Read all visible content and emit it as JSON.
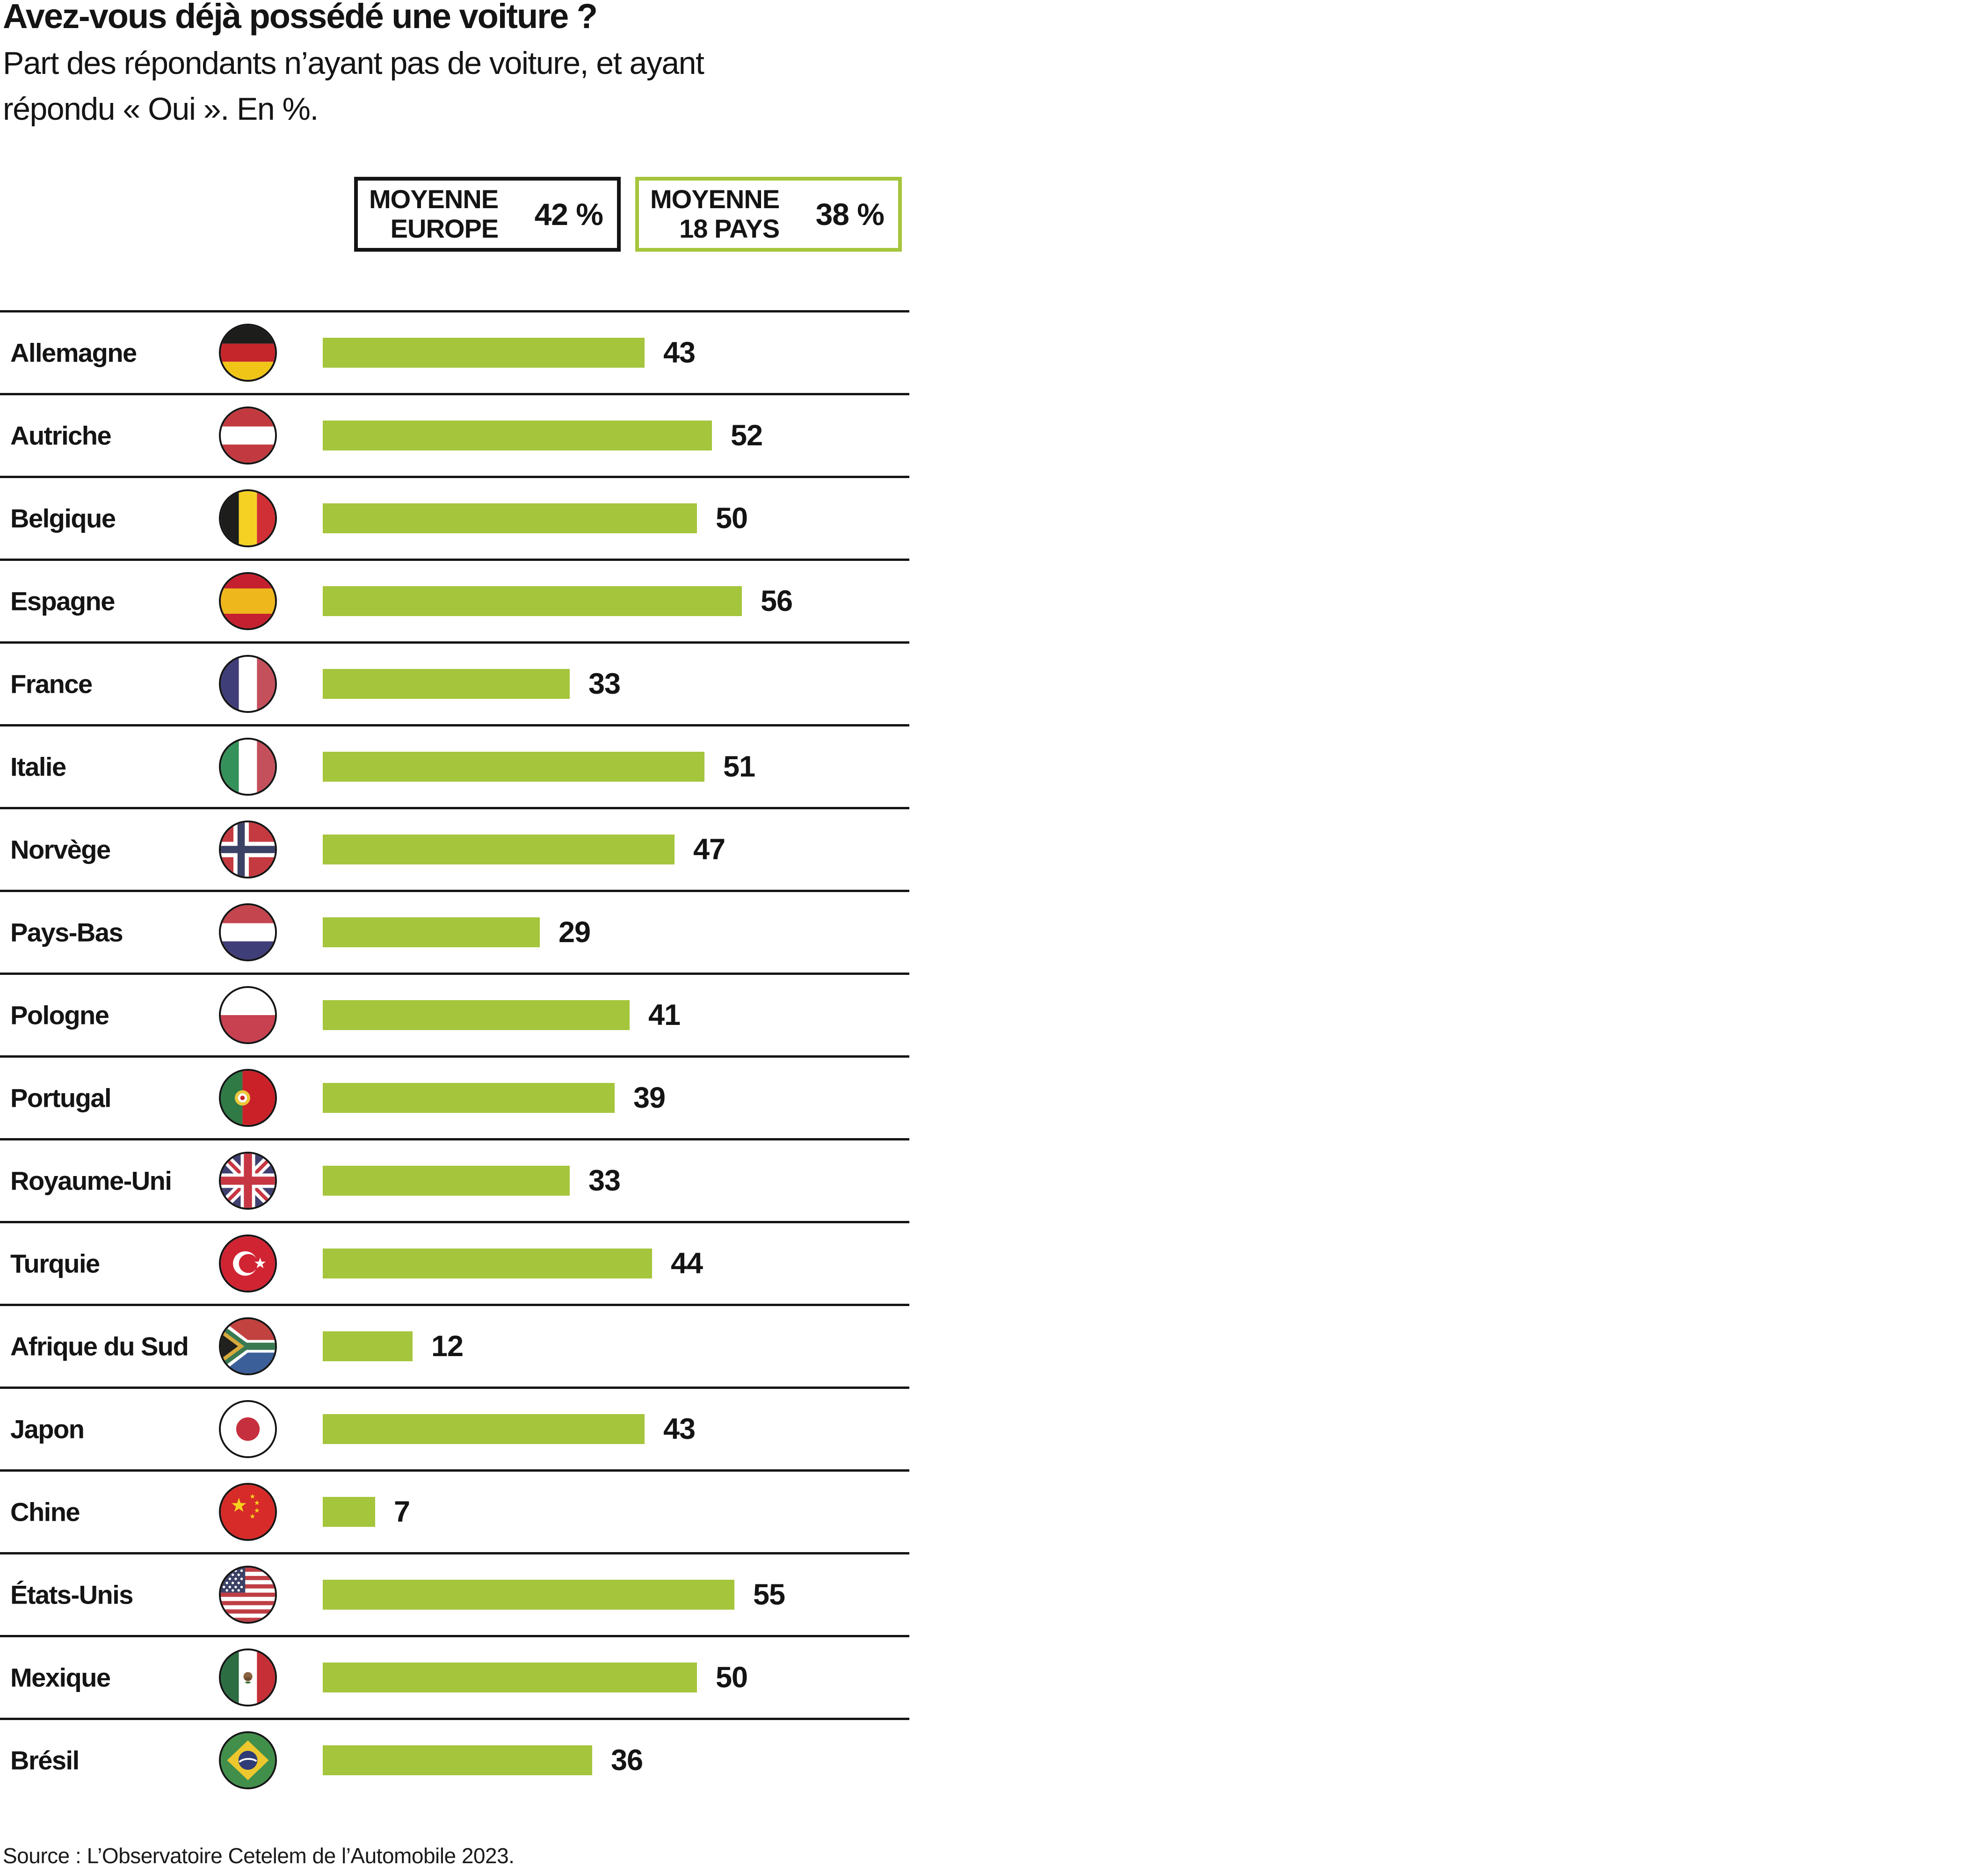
{
  "page": {
    "title": "Avez-vous déjà possédé une voiture ?",
    "subtitle_line1": "Part des répondants n’ayant pas de voiture, et ayant",
    "subtitle_line2": "répondu « Oui ». En %.",
    "source": "Source : L’Observatoire Cetelem de l’Automobile 2023."
  },
  "legend": {
    "europe": {
      "line1": "MOYENNE",
      "line2": "EUROPE",
      "value": "42 %"
    },
    "pays18": {
      "line1": "MOYENNE",
      "line2": "18 PAYS",
      "value": "38 %"
    }
  },
  "colors": {
    "bar_green": "#a5c53c",
    "legend_green_border": "#a5c53c",
    "line_black": "#141414"
  },
  "chart_data": {
    "type": "bar",
    "orientation": "horizontal",
    "title": "Avez-vous déjà possédé une voiture ?",
    "subtitle": "Part des répondants n’ayant pas de voiture, et ayant répondu « Oui ». En %.",
    "unit": "%",
    "categories": [
      "Allemagne",
      "Autriche",
      "Belgique",
      "Espagne",
      "France",
      "Italie",
      "Norvège",
      "Pays-Bas",
      "Pologne",
      "Portugal",
      "Royaume-Uni",
      "Turquie",
      "Afrique du Sud",
      "Japon",
      "Chine",
      "États-Unis",
      "Mexique",
      "Brésil"
    ],
    "values": [
      43,
      52,
      50,
      56,
      33,
      51,
      47,
      29,
      41,
      39,
      33,
      44,
      12,
      43,
      7,
      55,
      50,
      36
    ],
    "flags": [
      "de",
      "at",
      "be",
      "es",
      "fr",
      "it",
      "no",
      "nl",
      "pl",
      "pt",
      "gb",
      "tr",
      "za",
      "jp",
      "cn",
      "us",
      "mx",
      "br"
    ],
    "averages": {
      "moyenne_europe": 42,
      "moyenne_18_pays": 38
    },
    "xlim": [
      0,
      60
    ],
    "grid": false,
    "legend_position": "top",
    "source": "Source : L’Observatoire Cetelem de l’Automobile 2023."
  }
}
